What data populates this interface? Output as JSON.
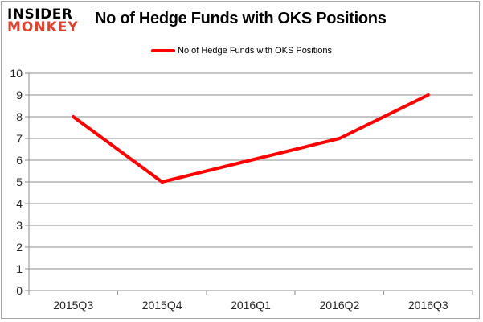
{
  "header": {
    "logo_line1": "INSIDER",
    "logo_line2": "MONKEY",
    "title": "No of Hedge Funds with OKS Positions"
  },
  "legend": {
    "label": "No of Hedge Funds with OKS Positions"
  },
  "chart_data": {
    "type": "line",
    "title": "No of Hedge Funds with OKS Positions",
    "categories": [
      "2015Q3",
      "2015Q4",
      "2016Q1",
      "2016Q2",
      "2016Q3"
    ],
    "series": [
      {
        "name": "No of Hedge Funds with OKS Positions",
        "values": [
          8,
          5,
          6,
          7,
          9
        ]
      }
    ],
    "xlabel": "",
    "ylabel": "",
    "ylim": [
      0,
      10
    ],
    "ytick_step": 1,
    "grid": true,
    "legend_position": "top"
  },
  "colors": {
    "series_line": "#ff0000",
    "logo_primary": "#000000",
    "logo_accent": "#e2402d",
    "gridline": "#8e8e8e",
    "axis_text": "#262626",
    "frame_border": "#a6a6a6",
    "background": "#ffffff"
  }
}
